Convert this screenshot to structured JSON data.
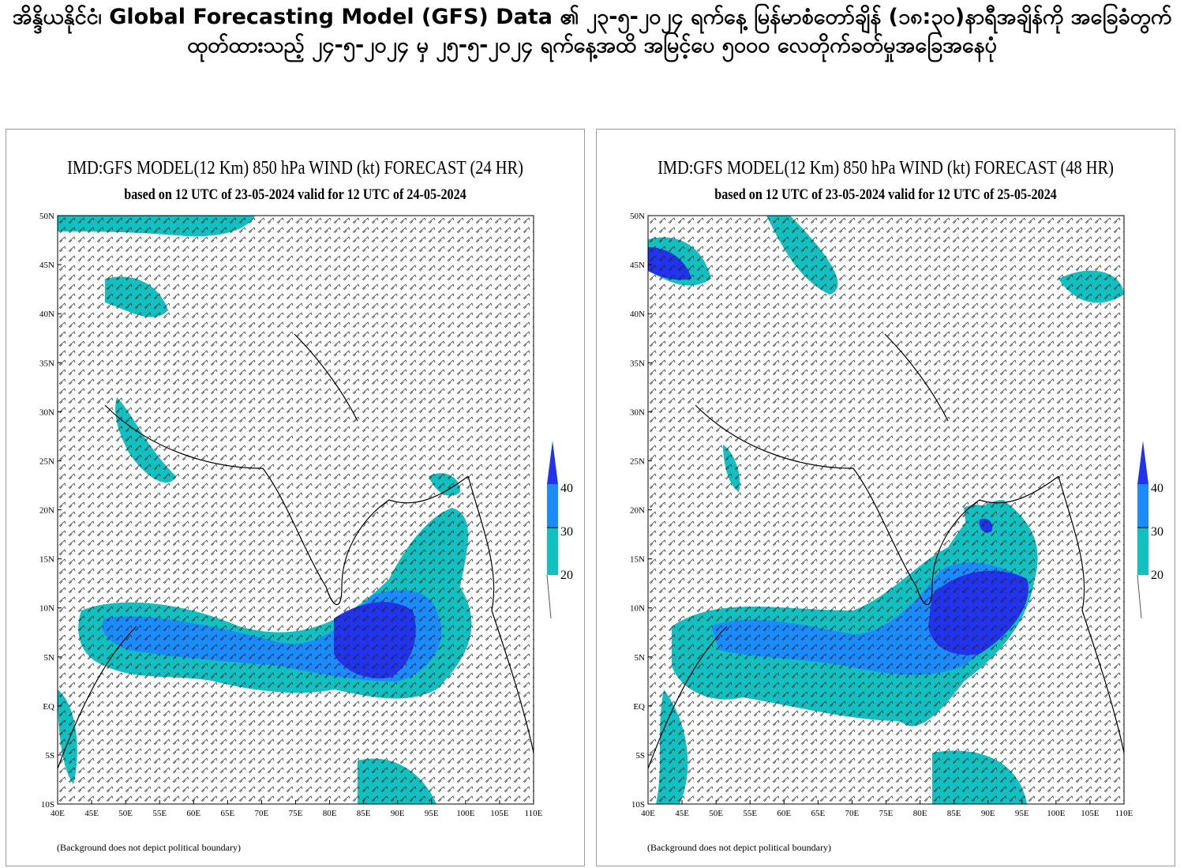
{
  "page_title": "အိန္ဒိယနိုင်ငံ၊ Global Forecasting Model (GFS) Data ၏ ၂၃-၅-၂၀၂၄ ရက်နေ့ မြန်မာစံတော်ချိန် (၁၈:၃၀)နာရီအချိန်ကို အခြေခံတွက်ထုတ်ထားသည့် ၂၄-၅-၂၀၂၄ မှ ၂၅-၅-၂၀၂၄ ရက်နေ့အထိ အမြင့်ပေ ၅၀၀၀ လေတိုက်ခတ်မှုအခြေအနေပုံ",
  "panels": [
    {
      "title": "IMD:GFS MODEL(12 Km) 850 hPa WIND (kt) FORECAST (24 HR)",
      "subtitle": "based on 12 UTC of 23-05-2024 valid for 12 UTC of 24-05-2024",
      "note": "(Background does not depict political boundary)"
    },
    {
      "title": "IMD:GFS MODEL(12 Km) 850 hPa WIND (kt) FORECAST (48 HR)",
      "subtitle": "based on 12 UTC of 23-05-2024 valid for 12 UTC of 25-05-2024",
      "note": "(Background does not depict political boundary)"
    }
  ],
  "lat_ticks": [
    "50N",
    "45N",
    "40N",
    "35N",
    "30N",
    "25N",
    "20N",
    "15N",
    "10N",
    "5N",
    "EQ",
    "5S",
    "10S"
  ],
  "lon_ticks": [
    "40E",
    "45E",
    "50E",
    "55E",
    "60E",
    "65E",
    "70E",
    "75E",
    "80E",
    "85E",
    "90E",
    "95E",
    "100E",
    "105E",
    "110E"
  ],
  "colorbar": {
    "labels": [
      "20",
      "30",
      "40"
    ],
    "colors": [
      "#11c0c0",
      "#1a8cff",
      "#2233ee"
    ]
  }
}
